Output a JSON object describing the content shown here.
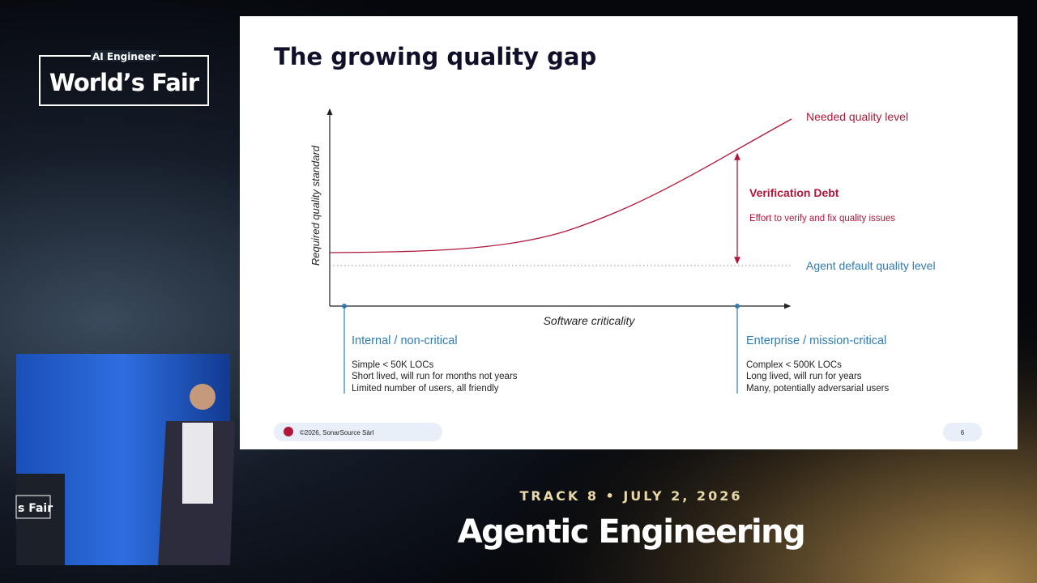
{
  "event_logo": {
    "line1": "AI Engineer",
    "line2": "World’s Fair"
  },
  "slide": {
    "title": "The growing quality gap",
    "y_axis_label": "Required quality standard",
    "x_axis_label": "Software criticality",
    "needed_level": "Needed quality level",
    "agent_level": "Agent default quality level",
    "gap": {
      "title": "Verification Debt",
      "description": "Effort to verify and fix quality issues"
    },
    "left": {
      "heading": "Internal / non-critical",
      "details": [
        "Simple < 50K LOCs",
        "Short lived, will run for months not years",
        "Limited number of users, all friendly"
      ]
    },
    "right": {
      "heading": "Enterprise / mission-critical",
      "details": [
        "Complex < 500K LOCs",
        "Long lived, will run for years",
        "Many, potentially adversarial users"
      ]
    },
    "footer": {
      "copyright": "©2026, SonarSource Sàrl",
      "page": "6"
    }
  },
  "speaker_video": {
    "badge": "s Fair"
  },
  "track": "TRACK 8 • JULY 2, 2026",
  "talk_title": "Agentic Engineering"
}
